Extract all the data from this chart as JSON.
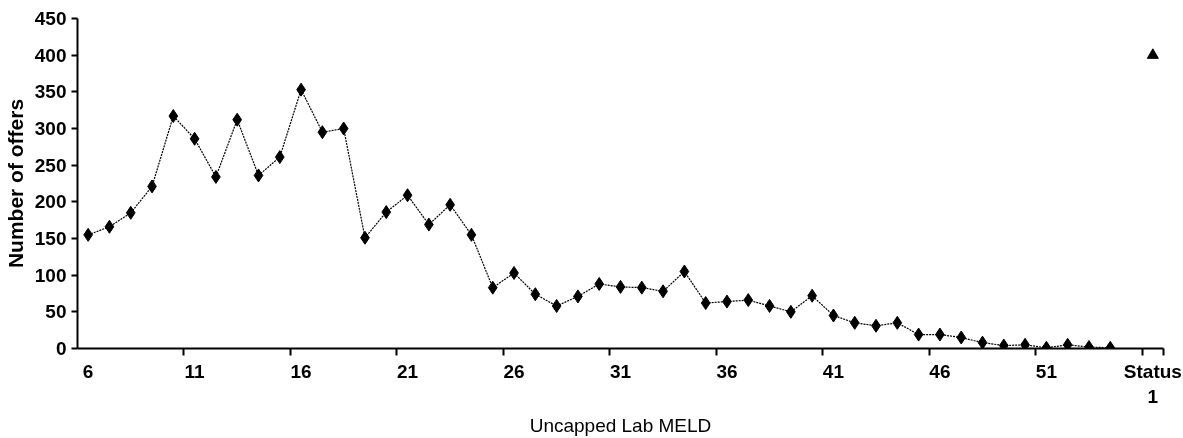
{
  "chart_data": {
    "type": "line",
    "xlabel": "Uncapped Lab MELD",
    "ylabel": "Number of offers",
    "categories": [
      "6",
      null,
      null,
      null,
      null,
      "11",
      null,
      null,
      null,
      null,
      "16",
      null,
      null,
      null,
      null,
      "21",
      null,
      null,
      null,
      null,
      "26",
      null,
      null,
      null,
      null,
      "31",
      null,
      null,
      null,
      null,
      "36",
      null,
      null,
      null,
      null,
      "41",
      null,
      null,
      null,
      null,
      "46",
      null,
      null,
      null,
      null,
      "51",
      null,
      null,
      null,
      null,
      "Status\n1"
    ],
    "series": [
      {
        "color": "#000000",
        "marker": "diamond",
        "values": [
          155,
          166,
          185,
          221,
          317,
          286,
          234,
          312,
          236,
          261,
          353,
          295,
          300,
          151,
          186,
          209,
          169,
          196,
          155,
          83,
          103,
          74,
          58,
          71,
          88,
          84,
          83,
          78,
          105,
          62,
          64,
          66,
          58,
          50,
          72,
          45,
          35,
          31,
          35,
          19,
          19,
          15,
          8,
          4,
          5,
          1,
          5,
          2,
          1,
          null,
          null
        ]
      },
      {
        "type": "scatter",
        "color": "#000000",
        "marker": "triangle",
        "values": [
          null,
          null,
          null,
          null,
          null,
          null,
          null,
          null,
          null,
          null,
          null,
          null,
          null,
          null,
          null,
          null,
          null,
          null,
          null,
          null,
          null,
          null,
          null,
          null,
          null,
          null,
          null,
          null,
          null,
          null,
          null,
          null,
          null,
          null,
          null,
          null,
          null,
          null,
          null,
          null,
          null,
          null,
          null,
          null,
          null,
          null,
          null,
          null,
          null,
          null,
          400
        ]
      }
    ],
    "ylim": [
      0,
      450
    ],
    "yticks": [
      0,
      50,
      100,
      150,
      200,
      250,
      300,
      350,
      400,
      450
    ],
    "grid": false,
    "line_style": "dashed"
  }
}
